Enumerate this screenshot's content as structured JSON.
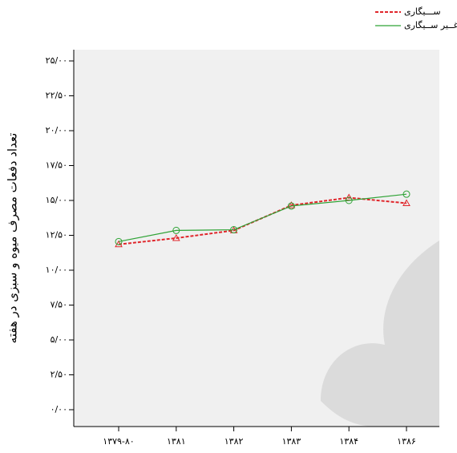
{
  "chart_data": {
    "type": "line",
    "y_label": "تعداد دفعات مصرف میوه و سبزی در هفته",
    "categories": [
      "۱۳۷۹-۸۰",
      "۱۳۸۱",
      "۱۳۸۲",
      "۱۳۸۳",
      "۱۳۸۴",
      "۱۳۸۶"
    ],
    "series": [
      {
        "name": "ســـیگاری",
        "color": "#e0262b",
        "dash": true,
        "marker": "triangle",
        "values": [
          11.85,
          12.3,
          12.85,
          14.65,
          15.2,
          14.8
        ]
      },
      {
        "name": "غــیر ســیگاری",
        "color": "#2fa336",
        "dash": false,
        "marker": "circle",
        "values": [
          12.05,
          12.85,
          12.9,
          14.6,
          15.0,
          15.45
        ]
      }
    ],
    "ylim": [
      0,
      25
    ],
    "yticks": [
      {
        "value": 0,
        "label": "۰/۰۰"
      },
      {
        "value": 2.5,
        "label": "۲/۵۰"
      },
      {
        "value": 5,
        "label": "۵/۰۰"
      },
      {
        "value": 7.5,
        "label": "۷/۵۰"
      },
      {
        "value": 10,
        "label": "۱۰/۰۰"
      },
      {
        "value": 12.5,
        "label": "۱۲/۵۰"
      },
      {
        "value": 15,
        "label": "۱۵/۰۰"
      },
      {
        "value": 17.5,
        "label": "۱۷/۵۰"
      },
      {
        "value": 20,
        "label": "۲۰/۰۰"
      },
      {
        "value": 22.5,
        "label": "۲۲/۵۰"
      },
      {
        "value": 25,
        "label": "۲۵/۰۰"
      }
    ]
  }
}
